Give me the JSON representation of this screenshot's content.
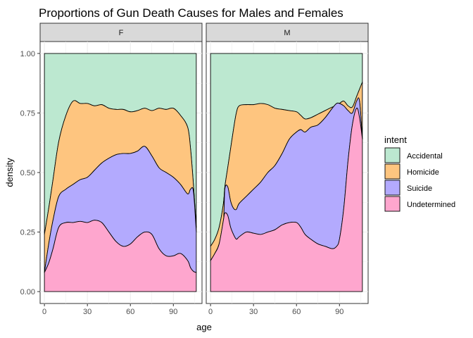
{
  "chart_data": {
    "type": "area",
    "subtype": "stacked-density-fill",
    "title": "Proportions of Gun Death Causes for Males and Females",
    "xlabel": "age",
    "ylabel": "density",
    "xlim": [
      -3,
      110
    ],
    "ylim": [
      -0.05,
      1.05
    ],
    "x_ticks": [
      0,
      30,
      60,
      90
    ],
    "x_tick_labels": [
      "0",
      "30",
      "60",
      "90"
    ],
    "y_ticks": [
      0,
      0.25,
      0.5,
      0.75,
      1.0
    ],
    "y_tick_labels": [
      "0.00",
      "0.25",
      "0.50",
      "0.75",
      "1.00"
    ],
    "grid": true,
    "legend": {
      "title": "intent",
      "position": "right",
      "entries": [
        {
          "name": "Accidental",
          "color": "#BCE8D0"
        },
        {
          "name": "Homicide",
          "color": "#FEC57F"
        },
        {
          "name": "Suicide",
          "color": "#B3AAFE"
        },
        {
          "name": "Undetermined",
          "color": "#FEA6CE"
        }
      ]
    },
    "facets": [
      {
        "label": "F",
        "x": [
          0,
          3,
          6,
          10,
          15,
          20,
          25,
          30,
          35,
          40,
          45,
          50,
          55,
          60,
          65,
          70,
          75,
          80,
          85,
          90,
          95,
          100,
          102,
          104,
          106
        ],
        "stack_bounds": {
          "undetermined_top": [
            0.08,
            0.12,
            0.18,
            0.27,
            0.29,
            0.29,
            0.295,
            0.29,
            0.3,
            0.29,
            0.25,
            0.21,
            0.19,
            0.2,
            0.23,
            0.25,
            0.24,
            0.18,
            0.15,
            0.15,
            0.16,
            0.13,
            0.1,
            0.085,
            0.08
          ],
          "suicide_top": [
            0.08,
            0.2,
            0.3,
            0.4,
            0.43,
            0.45,
            0.47,
            0.48,
            0.51,
            0.54,
            0.56,
            0.575,
            0.58,
            0.58,
            0.59,
            0.61,
            0.57,
            0.52,
            0.5,
            0.48,
            0.45,
            0.41,
            0.43,
            0.42,
            0.25
          ],
          "homicide_top": [
            0.24,
            0.35,
            0.47,
            0.63,
            0.74,
            0.8,
            0.79,
            0.79,
            0.78,
            0.785,
            0.77,
            0.765,
            0.765,
            0.755,
            0.76,
            0.77,
            0.76,
            0.77,
            0.765,
            0.77,
            0.74,
            0.69,
            0.6,
            0.45,
            0.27
          ]
        }
      },
      {
        "label": "M",
        "x": [
          0,
          3,
          6,
          9,
          10,
          12,
          14,
          16,
          18,
          20,
          25,
          30,
          35,
          40,
          45,
          50,
          55,
          60,
          63,
          66,
          70,
          75,
          80,
          85,
          88,
          90,
          93,
          96,
          99,
          102,
          104,
          106
        ],
        "stack_bounds": {
          "undetermined_top": [
            0.13,
            0.16,
            0.2,
            0.3,
            0.33,
            0.32,
            0.27,
            0.24,
            0.22,
            0.23,
            0.25,
            0.245,
            0.24,
            0.25,
            0.26,
            0.28,
            0.29,
            0.29,
            0.27,
            0.24,
            0.22,
            0.2,
            0.19,
            0.18,
            0.19,
            0.22,
            0.35,
            0.55,
            0.7,
            0.77,
            0.73,
            0.64
          ],
          "suicide_top": [
            0.13,
            0.16,
            0.2,
            0.29,
            0.43,
            0.44,
            0.38,
            0.35,
            0.345,
            0.37,
            0.4,
            0.43,
            0.46,
            0.5,
            0.53,
            0.58,
            0.64,
            0.67,
            0.68,
            0.67,
            0.69,
            0.7,
            0.73,
            0.77,
            0.79,
            0.79,
            0.78,
            0.76,
            0.75,
            0.8,
            0.8,
            0.64
          ],
          "homicide_top": [
            0.19,
            0.22,
            0.27,
            0.37,
            0.44,
            0.52,
            0.6,
            0.68,
            0.75,
            0.78,
            0.785,
            0.785,
            0.79,
            0.785,
            0.77,
            0.765,
            0.76,
            0.755,
            0.74,
            0.725,
            0.73,
            0.745,
            0.76,
            0.775,
            0.78,
            0.79,
            0.8,
            0.78,
            0.775,
            0.82,
            0.85,
            0.88
          ]
        }
      }
    ]
  }
}
